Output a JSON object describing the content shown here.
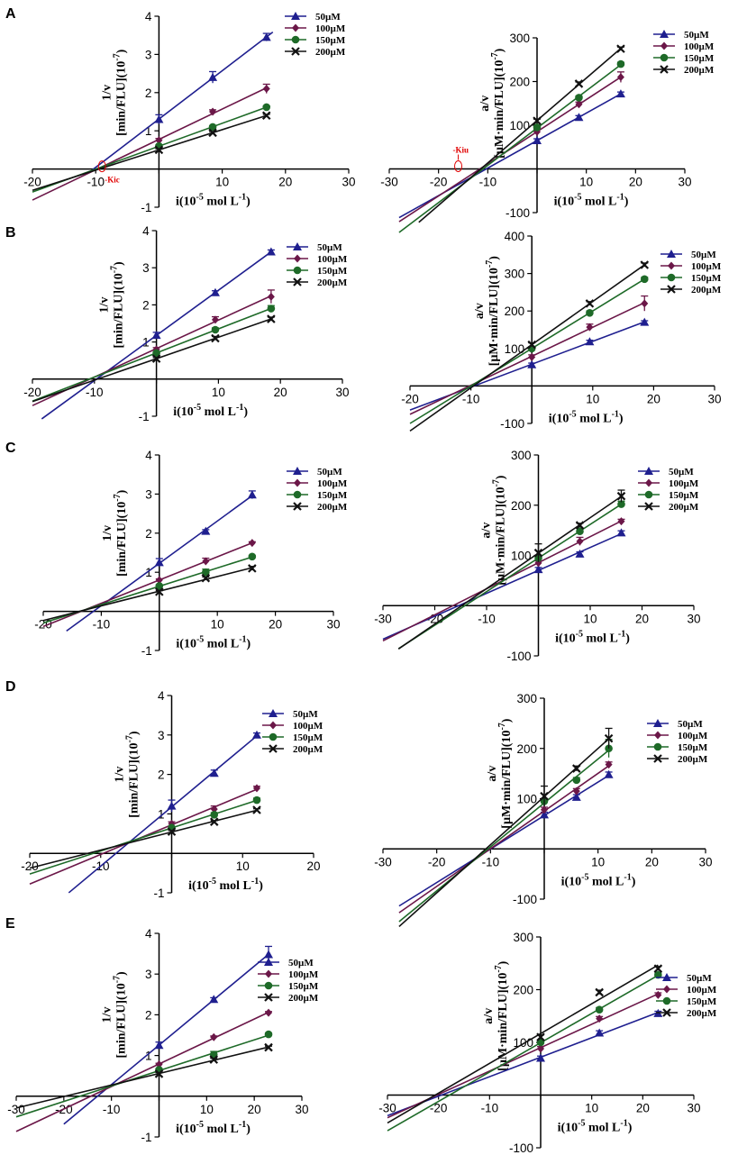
{
  "colors": {
    "50µM": "#1f1f8f",
    "100µM": "#6b1748",
    "150µM": "#1e6a28",
    "200µM": "#111111",
    "annotation": "#e00000"
  },
  "legend": [
    "50µM",
    "100µM",
    "150µM",
    "200µM"
  ],
  "markers": {
    "50µM": "triangle",
    "100µM": "diamond",
    "150µM": "circle",
    "200µM": "cross"
  },
  "panel_labels": [
    "A",
    "B",
    "C",
    "D",
    "E"
  ],
  "chart_data": [
    {
      "id": "A-left",
      "panel": "A",
      "type": "scatter",
      "ylabel1": "1/v",
      "ylabel2": "[min/FLU](10-7)",
      "xlabel": "i(10-5 mol L-1)",
      "xlim": [
        -20,
        30
      ],
      "ylim": [
        -1,
        4
      ],
      "xticks": [
        -20,
        -10,
        0,
        10,
        20,
        30
      ],
      "yticks": [
        -1,
        1,
        2,
        3,
        4
      ],
      "x": [
        0,
        8.5,
        17
      ],
      "series": [
        {
          "name": "50µM",
          "values": [
            1.3,
            2.4,
            3.45
          ],
          "errors": [
            0.12,
            0.15,
            0.1
          ],
          "fit": [
            -10.5,
            18
          ]
        },
        {
          "name": "100µM",
          "values": [
            0.75,
            1.5,
            2.1
          ],
          "errors": [
            0.05,
            0.05,
            0.12
          ],
          "fit": [
            -20,
            17
          ]
        },
        {
          "name": "150µM",
          "values": [
            0.6,
            1.1,
            1.62
          ],
          "errors": [
            0.03,
            0.03,
            0.03
          ],
          "fit": [
            -20,
            17
          ]
        },
        {
          "name": "200µM",
          "values": [
            0.5,
            0.95,
            1.4
          ],
          "errors": [
            0.03,
            0.03,
            0.03
          ],
          "fit": [
            -20,
            17
          ]
        }
      ],
      "annotation": "-Kic",
      "annotation_x": -9
    },
    {
      "id": "A-right",
      "panel": "A",
      "type": "scatter",
      "ylabel1": "a/v",
      "ylabel2": "[µM·min/FLU](10-7)",
      "xlabel": "i(10-5 mol L-1)",
      "xlim": [
        -30,
        30
      ],
      "ylim": [
        -100,
        300
      ],
      "xticks": [
        -30,
        -20,
        -10,
        0,
        10,
        20,
        30
      ],
      "yticks": [
        -100,
        100,
        200,
        300
      ],
      "x": [
        0,
        8.5,
        17
      ],
      "series": [
        {
          "name": "50µM",
          "values": [
            65,
            118,
            172
          ],
          "errors": [
            4,
            4,
            4
          ],
          "fit": [
            -28,
            17
          ]
        },
        {
          "name": "100µM",
          "values": [
            85,
            148,
            210
          ],
          "errors": [
            5,
            5,
            12
          ],
          "fit": [
            -28,
            17
          ]
        },
        {
          "name": "150µM",
          "values": [
            95,
            163,
            240
          ],
          "errors": [
            4,
            4,
            4
          ],
          "fit": [
            -28,
            17
          ]
        },
        {
          "name": "200µM",
          "values": [
            110,
            195,
            275
          ],
          "errors": [
            4,
            4,
            4
          ],
          "fit": [
            -24,
            17
          ]
        }
      ],
      "annotation": "-Kiu",
      "annotation_x": -16
    },
    {
      "id": "B-left",
      "panel": "B",
      "type": "scatter",
      "ylabel1": "1/v",
      "ylabel2": "[min/FLU](10-7)",
      "xlabel": "i(10-5 mol L-1)",
      "xlim": [
        -20,
        30
      ],
      "ylim": [
        -1,
        4
      ],
      "xticks": [
        -20,
        -10,
        0,
        10,
        20,
        30
      ],
      "yticks": [
        -1,
        1,
        2,
        3,
        4
      ],
      "x": [
        0,
        9.5,
        18.5
      ],
      "series": [
        {
          "name": "50µM",
          "values": [
            1.18,
            2.33,
            3.43
          ],
          "errors": [
            0.08,
            0.05,
            0.05
          ],
          "fit": [
            -18.5,
            18.5
          ]
        },
        {
          "name": "100µM",
          "values": [
            0.8,
            1.6,
            2.22
          ],
          "errors": [
            0.05,
            0.08,
            0.18
          ],
          "fit": [
            -20,
            18.5
          ]
        },
        {
          "name": "150µM",
          "values": [
            0.7,
            1.33,
            1.9
          ],
          "errors": [
            0.03,
            0.05,
            0.08
          ],
          "fit": [
            -20,
            18.5
          ]
        },
        {
          "name": "200µM",
          "values": [
            0.55,
            1.1,
            1.62
          ],
          "errors": [
            0.03,
            0.05,
            0.05
          ],
          "fit": [
            -20,
            18.5
          ]
        }
      ]
    },
    {
      "id": "B-right",
      "panel": "B",
      "type": "scatter",
      "ylabel1": "a/v",
      "ylabel2": "[µM·min/FLU](10-7)",
      "xlabel": "i(10-5 mol L-1)",
      "xlim": [
        -20,
        30
      ],
      "ylim": [
        -100,
        400
      ],
      "xticks": [
        -20,
        -10,
        0,
        10,
        20,
        30
      ],
      "yticks": [
        -100,
        100,
        200,
        300,
        400
      ],
      "x": [
        0,
        9.5,
        18.5
      ],
      "series": [
        {
          "name": "50µM",
          "values": [
            57,
            118,
            170
          ],
          "errors": [
            4,
            4,
            4
          ],
          "fit": [
            -20,
            18.5
          ]
        },
        {
          "name": "100µM",
          "values": [
            77,
            157,
            220
          ],
          "errors": [
            6,
            8,
            20
          ],
          "fit": [
            -20,
            18.5
          ]
        },
        {
          "name": "150µM",
          "values": [
            100,
            195,
            285
          ],
          "errors": [
            5,
            5,
            5
          ],
          "fit": [
            -20,
            18.5
          ]
        },
        {
          "name": "200µM",
          "values": [
            110,
            220,
            323
          ],
          "errors": [
            5,
            5,
            5
          ],
          "fit": [
            -20,
            18.5
          ]
        }
      ]
    },
    {
      "id": "C-left",
      "panel": "C",
      "type": "scatter",
      "ylabel1": "1/v",
      "ylabel2": "[min/FLU](10-7)",
      "xlabel": "i(10-5 mol L-1)",
      "xlim": [
        -20,
        30
      ],
      "ylim": [
        -1,
        4
      ],
      "xticks": [
        -20,
        -10,
        0,
        10,
        20,
        30
      ],
      "yticks": [
        -1,
        1,
        2,
        3,
        4
      ],
      "x": [
        0,
        8,
        16
      ],
      "series": [
        {
          "name": "50µM",
          "values": [
            1.25,
            2.05,
            2.98
          ],
          "errors": [
            0.1,
            0.04,
            0.1
          ],
          "fit": [
            -16,
            16
          ]
        },
        {
          "name": "100µM",
          "values": [
            0.8,
            1.28,
            1.75
          ],
          "errors": [
            0.03,
            0.08,
            0.03
          ],
          "fit": [
            -20,
            16
          ]
        },
        {
          "name": "150µM",
          "values": [
            0.65,
            1.0,
            1.4
          ],
          "errors": [
            0.03,
            0.08,
            0.03
          ],
          "fit": [
            -20,
            16
          ]
        },
        {
          "name": "200µM",
          "values": [
            0.5,
            0.85,
            1.1
          ],
          "errors": [
            0.03,
            0.03,
            0.05
          ],
          "fit": [
            -20,
            16
          ]
        }
      ]
    },
    {
      "id": "C-right",
      "panel": "C",
      "type": "scatter",
      "ylabel1": "a/v",
      "ylabel2": "[µM·min/FLU](10-7)",
      "xlabel": "i(10-5 mol L-1)",
      "xlim": [
        -30,
        30
      ],
      "ylim": [
        -100,
        300
      ],
      "xticks": [
        -30,
        -20,
        -10,
        0,
        10,
        20,
        30
      ],
      "yticks": [
        -100,
        100,
        200,
        300
      ],
      "x": [
        0,
        8,
        16
      ],
      "series": [
        {
          "name": "50µM",
          "values": [
            72,
            103,
            145
          ],
          "errors": [
            4,
            4,
            4
          ],
          "fit": [
            -30,
            16
          ]
        },
        {
          "name": "100µM",
          "values": [
            85,
            128,
            168
          ],
          "errors": [
            4,
            8,
            4
          ],
          "fit": [
            -30,
            16
          ]
        },
        {
          "name": "150µM",
          "values": [
            95,
            148,
            202
          ],
          "errors": [
            4,
            6,
            6
          ],
          "fit": [
            -27,
            16
          ]
        },
        {
          "name": "200µM",
          "values": [
            105,
            160,
            218
          ],
          "errors": [
            18,
            4,
            12
          ],
          "fit": [
            -27,
            16
          ]
        }
      ]
    },
    {
      "id": "D-left",
      "panel": "D",
      "type": "scatter",
      "ylabel1": "1/v",
      "ylabel2": "[min/FLU](10-7)",
      "xlabel": "i(10-5 mol L-1)",
      "xlim": [
        -20,
        20
      ],
      "ylim": [
        -1,
        4
      ],
      "xticks": [
        -20,
        -10,
        0,
        10,
        20
      ],
      "yticks": [
        -1,
        1,
        2,
        3,
        4
      ],
      "x": [
        0,
        6,
        12
      ],
      "series": [
        {
          "name": "50µM",
          "values": [
            1.2,
            2.03,
            3.0
          ],
          "errors": [
            0.15,
            0.08,
            0.05
          ],
          "fit": [
            -14.5,
            12
          ]
        },
        {
          "name": "100µM",
          "values": [
            0.75,
            1.12,
            1.65
          ],
          "errors": [
            0.05,
            0.08,
            0.05
          ],
          "fit": [
            -20,
            12
          ]
        },
        {
          "name": "150µM",
          "values": [
            0.65,
            0.98,
            1.35
          ],
          "errors": [
            0.03,
            0.05,
            0.05
          ],
          "fit": [
            -20,
            12
          ]
        },
        {
          "name": "200µM",
          "values": [
            0.55,
            0.8,
            1.1
          ],
          "errors": [
            0.03,
            0.03,
            0.03
          ],
          "fit": [
            -20,
            12
          ]
        }
      ]
    },
    {
      "id": "D-right",
      "panel": "D",
      "type": "scatter",
      "ylabel1": "a/v",
      "ylabel2": "[µM·min/FLU](10-7)",
      "xlabel": "i(10-5 mol L-1)",
      "xlim": [
        -30,
        30
      ],
      "ylim": [
        -100,
        300
      ],
      "xticks": [
        -30,
        -20,
        -10,
        0,
        10,
        20,
        30
      ],
      "yticks": [
        -100,
        100,
        200,
        300
      ],
      "x": [
        0,
        6,
        12
      ],
      "series": [
        {
          "name": "50µM",
          "values": [
            68,
            103,
            148
          ],
          "errors": [
            5,
            5,
            5
          ],
          "fit": [
            -27,
            12
          ]
        },
        {
          "name": "100µM",
          "values": [
            78,
            115,
            168
          ],
          "errors": [
            5,
            5,
            5
          ],
          "fit": [
            -27,
            12
          ]
        },
        {
          "name": "150µM",
          "values": [
            95,
            137,
            200
          ],
          "errors": [
            5,
            5,
            18
          ],
          "fit": [
            -27,
            12
          ]
        },
        {
          "name": "200µM",
          "values": [
            105,
            160,
            220
          ],
          "errors": [
            20,
            5,
            20
          ],
          "fit": [
            -27,
            12
          ]
        }
      ]
    },
    {
      "id": "E-left",
      "panel": "E",
      "type": "scatter",
      "ylabel1": "1/v",
      "ylabel2": "[min/FLU](10-7)",
      "xlabel": "i(10-5 mol L-1)",
      "xlim": [
        -30,
        30
      ],
      "ylim": [
        -1,
        4
      ],
      "xticks": [
        -30,
        -20,
        -10,
        0,
        10,
        20,
        30
      ],
      "yticks": [
        -1,
        1,
        2,
        3,
        4
      ],
      "x": [
        0,
        11.5,
        23
      ],
      "series": [
        {
          "name": "50µM",
          "values": [
            1.25,
            2.38,
            3.48
          ],
          "errors": [
            0.08,
            0.04,
            0.2
          ],
          "fit": [
            -20,
            23
          ]
        },
        {
          "name": "100µM",
          "values": [
            0.78,
            1.45,
            2.05
          ],
          "errors": [
            0.03,
            0.03,
            0.03
          ],
          "fit": [
            -30,
            23
          ]
        },
        {
          "name": "150µM",
          "values": [
            0.65,
            1.02,
            1.52
          ],
          "errors": [
            0.03,
            0.08,
            0.03
          ],
          "fit": [
            -30,
            23
          ]
        },
        {
          "name": "200µM",
          "values": [
            0.55,
            0.9,
            1.2
          ],
          "errors": [
            0.03,
            0.03,
            0.03
          ],
          "fit": [
            -30,
            23
          ]
        }
      ]
    },
    {
      "id": "E-right",
      "panel": "E",
      "type": "scatter",
      "ylabel1": "a/v",
      "ylabel2": "[µM·min/FLU](10-7)",
      "xlabel": "i(10-5 mol L-1)",
      "xlim": [
        -30,
        30
      ],
      "ylim": [
        -100,
        300
      ],
      "xticks": [
        -30,
        -20,
        -10,
        0,
        10,
        20,
        30
      ],
      "yticks": [
        -100,
        100,
        200,
        300
      ],
      "x": [
        0,
        11.5,
        23
      ],
      "series": [
        {
          "name": "50µM",
          "values": [
            70,
            118,
            155
          ],
          "errors": [
            4,
            4,
            4
          ],
          "fit": [
            -30,
            23
          ]
        },
        {
          "name": "100µM",
          "values": [
            88,
            145,
            190
          ],
          "errors": [
            4,
            4,
            4
          ],
          "fit": [
            -30,
            23
          ]
        },
        {
          "name": "150µM",
          "values": [
            100,
            162,
            228
          ],
          "errors": [
            4,
            4,
            4
          ],
          "fit": [
            -30,
            23
          ]
        },
        {
          "name": "200µM",
          "values": [
            110,
            195,
            240
          ],
          "errors": [
            4,
            4,
            4
          ],
          "fit": [
            -30,
            23
          ]
        }
      ]
    }
  ]
}
